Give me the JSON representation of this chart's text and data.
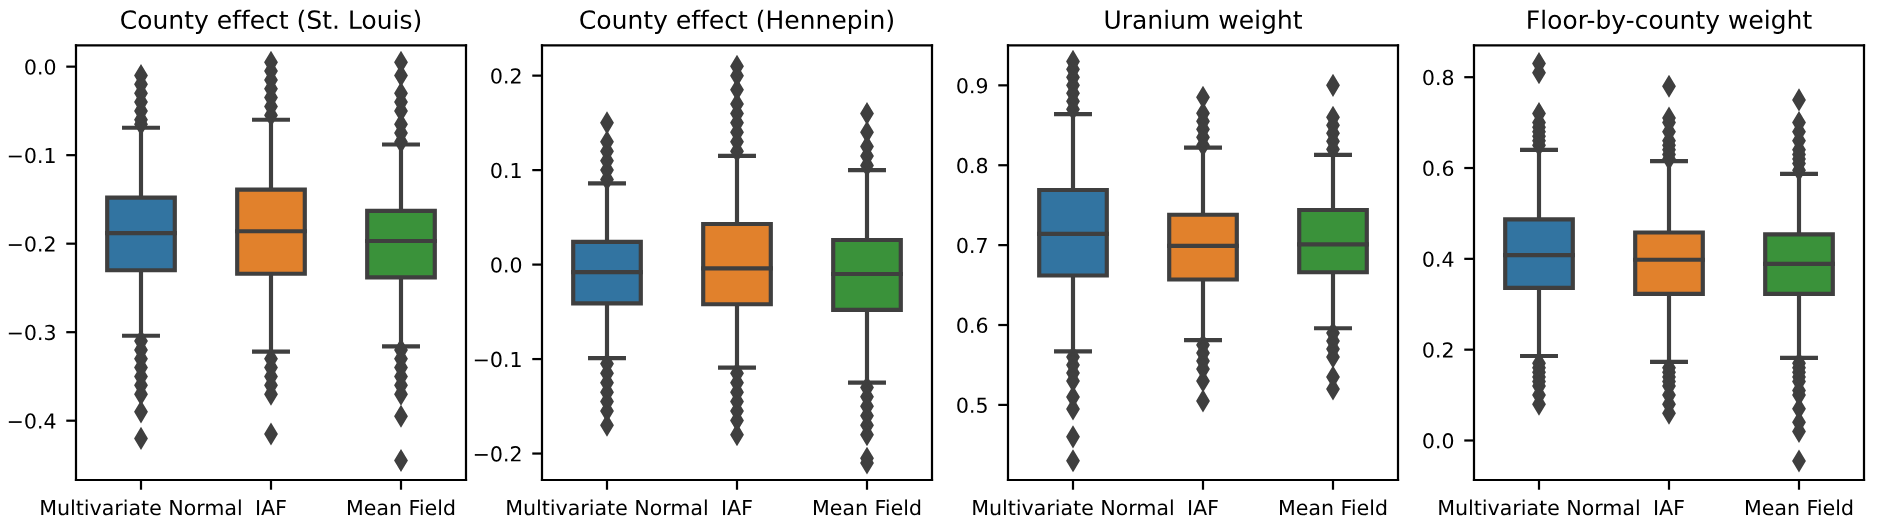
{
  "chart_data": [
    {
      "type": "box",
      "title": "County effect (St. Louis)",
      "categories": [
        "Multivariate Normal",
        "IAF",
        "Mean Field"
      ],
      "colors": [
        "#3274a1",
        "#e1812c",
        "#3a923a"
      ],
      "marker": "diamond",
      "grid": false,
      "ylim": [
        -0.467,
        0.024
      ],
      "yticks": [
        {
          "value": -0.4,
          "label": "−0.4"
        },
        {
          "value": -0.3,
          "label": "−0.3"
        },
        {
          "value": -0.2,
          "label": "−0.2"
        },
        {
          "value": -0.1,
          "label": "−0.1"
        },
        {
          "value": 0.0,
          "label": "0.0"
        }
      ],
      "boxes": [
        {
          "low": -0.304,
          "q1": -0.23,
          "median": -0.188,
          "q3": -0.148,
          "high": -0.069,
          "outliers": [
            -0.065,
            -0.06,
            -0.05,
            -0.04,
            -0.03,
            -0.02,
            -0.01,
            -0.31,
            -0.32,
            -0.33,
            -0.34,
            -0.35,
            -0.36,
            -0.37,
            -0.39,
            -0.42
          ]
        },
        {
          "low": -0.322,
          "q1": -0.234,
          "median": -0.186,
          "q3": -0.139,
          "high": -0.06,
          "outliers": [
            -0.055,
            -0.045,
            -0.035,
            -0.025,
            -0.015,
            -0.005,
            0.005,
            -0.33,
            -0.34,
            -0.35,
            -0.36,
            -0.37,
            -0.415
          ]
        },
        {
          "low": -0.316,
          "q1": -0.238,
          "median": -0.197,
          "q3": -0.163,
          "high": -0.088,
          "outliers": [
            -0.085,
            -0.075,
            -0.065,
            -0.05,
            -0.04,
            -0.03,
            -0.01,
            0.005,
            -0.32,
            -0.33,
            -0.34,
            -0.35,
            -0.36,
            -0.37,
            -0.395,
            -0.445
          ]
        }
      ]
    },
    {
      "type": "box",
      "title": "County effect (Hennepin)",
      "categories": [
        "Multivariate Normal",
        "IAF",
        "Mean Field"
      ],
      "colors": [
        "#3274a1",
        "#e1812c",
        "#3a923a"
      ],
      "marker": "diamond",
      "grid": false,
      "ylim": [
        -0.228,
        0.232
      ],
      "yticks": [
        {
          "value": -0.2,
          "label": "−0.2"
        },
        {
          "value": -0.1,
          "label": "−0.1"
        },
        {
          "value": 0.0,
          "label": "0.0"
        },
        {
          "value": 0.1,
          "label": "0.1"
        },
        {
          "value": 0.2,
          "label": "0.2"
        }
      ],
      "boxes": [
        {
          "low": -0.099,
          "q1": -0.041,
          "median": -0.008,
          "q3": 0.024,
          "high": 0.086,
          "outliers": [
            0.09,
            0.1,
            0.11,
            0.12,
            0.13,
            0.15,
            -0.105,
            -0.115,
            -0.125,
            -0.135,
            -0.145,
            -0.155,
            -0.17
          ]
        },
        {
          "low": -0.109,
          "q1": -0.042,
          "median": -0.004,
          "q3": 0.043,
          "high": 0.115,
          "outliers": [
            0.12,
            0.13,
            0.14,
            0.15,
            0.16,
            0.17,
            0.185,
            0.2,
            0.21,
            -0.115,
            -0.125,
            -0.135,
            -0.145,
            -0.155,
            -0.165,
            -0.18
          ]
        },
        {
          "low": -0.125,
          "q1": -0.048,
          "median": -0.01,
          "q3": 0.026,
          "high": 0.1,
          "outliers": [
            0.105,
            0.115,
            0.125,
            0.14,
            0.16,
            -0.13,
            -0.14,
            -0.15,
            -0.16,
            -0.17,
            -0.18,
            -0.205,
            -0.21
          ]
        }
      ]
    },
    {
      "type": "box",
      "title": "Uranium weight",
      "categories": [
        "Multivariate Normal",
        "IAF",
        "Mean Field"
      ],
      "colors": [
        "#3274a1",
        "#e1812c",
        "#3a923a"
      ],
      "marker": "diamond",
      "grid": false,
      "ylim": [
        0.406,
        0.95
      ],
      "yticks": [
        {
          "value": 0.5,
          "label": "0.5"
        },
        {
          "value": 0.6,
          "label": "0.6"
        },
        {
          "value": 0.7,
          "label": "0.7"
        },
        {
          "value": 0.8,
          "label": "0.8"
        },
        {
          "value": 0.9,
          "label": "0.9"
        }
      ],
      "boxes": [
        {
          "low": 0.567,
          "q1": 0.662,
          "median": 0.714,
          "q3": 0.769,
          "high": 0.864,
          "outliers": [
            0.87,
            0.88,
            0.89,
            0.9,
            0.91,
            0.92,
            0.93,
            0.56,
            0.55,
            0.54,
            0.53,
            0.51,
            0.495,
            0.46,
            0.43
          ]
        },
        {
          "low": 0.581,
          "q1": 0.657,
          "median": 0.699,
          "q3": 0.738,
          "high": 0.822,
          "outliers": [
            0.825,
            0.835,
            0.845,
            0.855,
            0.865,
            0.885,
            0.575,
            0.565,
            0.555,
            0.545,
            0.53,
            0.505
          ]
        },
        {
          "low": 0.596,
          "q1": 0.666,
          "median": 0.701,
          "q3": 0.744,
          "high": 0.813,
          "outliers": [
            0.82,
            0.83,
            0.84,
            0.85,
            0.86,
            0.9,
            0.59,
            0.58,
            0.57,
            0.56,
            0.535,
            0.52
          ]
        }
      ]
    },
    {
      "type": "box",
      "title": "Floor-by-county weight",
      "categories": [
        "Multivariate Normal",
        "IAF",
        "Mean Field"
      ],
      "colors": [
        "#3274a1",
        "#e1812c",
        "#3a923a"
      ],
      "marker": "diamond",
      "grid": false,
      "ylim": [
        -0.087,
        0.87
      ],
      "yticks": [
        {
          "value": 0.0,
          "label": "0.0"
        },
        {
          "value": 0.2,
          "label": "0.2"
        },
        {
          "value": 0.4,
          "label": "0.4"
        },
        {
          "value": 0.6,
          "label": "0.6"
        },
        {
          "value": 0.8,
          "label": "0.8"
        }
      ],
      "boxes": [
        {
          "low": 0.186,
          "q1": 0.336,
          "median": 0.408,
          "q3": 0.487,
          "high": 0.64,
          "outliers": [
            0.65,
            0.66,
            0.67,
            0.68,
            0.69,
            0.7,
            0.72,
            0.81,
            0.83,
            0.17,
            0.16,
            0.15,
            0.14,
            0.13,
            0.12,
            0.1,
            0.08
          ]
        },
        {
          "low": 0.173,
          "q1": 0.323,
          "median": 0.398,
          "q3": 0.458,
          "high": 0.615,
          "outliers": [
            0.62,
            0.63,
            0.64,
            0.65,
            0.66,
            0.68,
            0.7,
            0.71,
            0.78,
            0.16,
            0.15,
            0.14,
            0.13,
            0.12,
            0.1,
            0.08,
            0.06
          ]
        },
        {
          "low": 0.182,
          "q1": 0.323,
          "median": 0.389,
          "q3": 0.454,
          "high": 0.587,
          "outliers": [
            0.595,
            0.61,
            0.62,
            0.63,
            0.64,
            0.66,
            0.68,
            0.7,
            0.75,
            0.17,
            0.16,
            0.15,
            0.14,
            0.13,
            0.11,
            0.1,
            0.07,
            0.04,
            0.02,
            -0.045
          ]
        }
      ]
    }
  ]
}
